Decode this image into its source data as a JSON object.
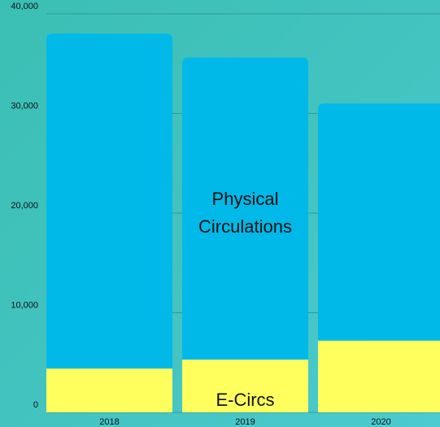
{
  "chart_data": {
    "type": "stacked_bar",
    "categories": [
      "2018",
      "2019",
      "2020"
    ],
    "series": [
      {
        "name": "E-Circs",
        "color": "#ffff5e",
        "values": [
          4400,
          5300,
          7200
        ]
      },
      {
        "name": "Physical Circulations",
        "color": "#00b9e8",
        "values": [
          33600,
          30300,
          23800
        ]
      }
    ],
    "ylim": [
      0,
      40000
    ],
    "yticks": [
      0,
      {
        "value": 10000,
        "label": "10,000"
      },
      {
        "value": 20000,
        "label": "20,000"
      },
      {
        "value": 30000,
        "label": "30,000"
      },
      {
        "value": 40000,
        "label": "40,000"
      }
    ],
    "grid": true
  }
}
